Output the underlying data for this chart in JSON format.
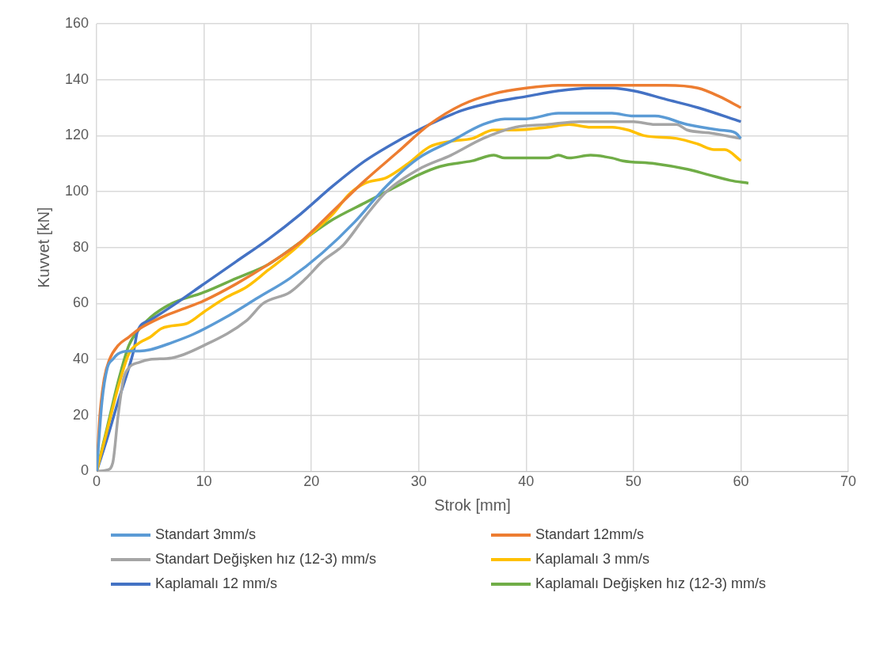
{
  "chart_data": {
    "type": "line",
    "xlabel": "Strok [mm]",
    "ylabel": "Kuvvet [kN]",
    "xlim": [
      0,
      70
    ],
    "xticks": [
      0,
      10,
      20,
      30,
      40,
      50,
      60,
      70
    ],
    "ylim": [
      0,
      160
    ],
    "yticks": [
      0,
      20,
      40,
      60,
      80,
      100,
      120,
      140,
      160
    ],
    "grid": true,
    "legend": "bottom",
    "marker": "none",
    "line_style": "solid",
    "series": [
      {
        "name": "Standart 3mm/s",
        "color": "#5b9bd5",
        "x": [
          0,
          0.5,
          1,
          1.5,
          2,
          3,
          4,
          5,
          7,
          9,
          12,
          15,
          18,
          21,
          24,
          27,
          30,
          33,
          36,
          38,
          40,
          43,
          45,
          48,
          50,
          52,
          55,
          58,
          59.5,
          60
        ],
        "values": [
          0,
          25,
          37,
          40,
          42,
          43,
          43,
          43.5,
          46,
          49,
          55,
          62,
          69,
          78,
          89,
          102,
          112,
          118,
          124,
          126,
          126,
          128,
          128,
          128,
          127,
          127,
          124,
          122,
          121,
          119
        ]
      },
      {
        "name": "Standart 12mm/s",
        "color": "#ed7d31",
        "x": [
          0,
          0.3,
          0.7,
          1.2,
          2,
          3,
          4,
          6,
          8,
          10,
          13,
          16,
          19,
          22,
          25,
          28,
          31,
          34,
          37,
          40,
          43,
          46,
          50,
          53,
          56,
          58,
          60
        ],
        "values": [
          0,
          20,
          33,
          40,
          45,
          48,
          51,
          55,
          58,
          61,
          67,
          74,
          82,
          93,
          104,
          114,
          124,
          131,
          135,
          137,
          138,
          138,
          138,
          138,
          137,
          134,
          130
        ]
      },
      {
        "name": "Standart Değişken hız (12-3) mm/s",
        "color": "#a5a5a5",
        "x": [
          0,
          1,
          1.5,
          2,
          2.5,
          3,
          4,
          5,
          7,
          10,
          14,
          15.5,
          18,
          19.5,
          21,
          23,
          25,
          27,
          30,
          33,
          36,
          39,
          42,
          45,
          48,
          50,
          52,
          54,
          55,
          57,
          60
        ],
        "values": [
          0,
          0.5,
          3,
          20,
          33,
          37,
          39,
          40,
          40.5,
          45,
          54,
          60,
          64,
          69,
          75,
          81,
          91,
          100,
          108,
          113,
          119,
          123,
          124,
          125,
          125,
          125,
          124,
          124,
          122,
          121,
          119
        ]
      },
      {
        "name": "Kaplamalı 3 mm/s",
        "color": "#ffc000",
        "x": [
          0,
          1,
          2,
          3,
          4,
          5,
          6,
          7,
          8.5,
          10,
          12,
          14,
          16,
          18,
          20,
          22,
          23.5,
          25,
          27,
          29,
          31,
          33,
          35,
          37,
          39,
          42,
          44,
          46,
          48,
          49.5,
          51,
          54,
          56,
          57.5,
          58.5,
          60
        ],
        "values": [
          0,
          15,
          30,
          42,
          46,
          48,
          51,
          52,
          53,
          57,
          62,
          66,
          72,
          78,
          85,
          92,
          99,
          103,
          105,
          110,
          116,
          118,
          119,
          122,
          122,
          123,
          124,
          123,
          123,
          122,
          120,
          119,
          117,
          115,
          115,
          111
        ]
      },
      {
        "name": "Kaplamalı 12 mm/s",
        "color": "#4472c4",
        "x": [
          0,
          1,
          2,
          3,
          3.5,
          3.8,
          5,
          7,
          10,
          13,
          16,
          19,
          22,
          25,
          28,
          31,
          34,
          37,
          40,
          43,
          46,
          48,
          50,
          53,
          56,
          60
        ],
        "values": [
          0,
          12,
          25,
          37,
          44,
          50,
          54,
          59,
          67,
          75,
          83,
          92,
          102,
          111,
          118,
          124,
          129,
          132,
          134,
          136,
          137,
          137,
          136,
          133,
          130,
          125
        ]
      },
      {
        "name": "Kaplamalı Değişken hız (12-3) mm/s",
        "color": "#70ad47",
        "x": [
          0,
          1,
          2,
          3,
          4,
          5,
          7,
          10,
          13,
          16,
          19,
          22,
          25,
          28,
          30,
          32,
          35,
          37,
          38,
          40,
          42,
          43,
          44,
          46,
          48,
          49,
          52,
          55,
          57,
          59,
          60.7
        ],
        "values": [
          0,
          16,
          32,
          45,
          51,
          55,
          60,
          64,
          69,
          74,
          82,
          90,
          96,
          102,
          106,
          109,
          111,
          113,
          112,
          112,
          112,
          113,
          112,
          113,
          112,
          111,
          110,
          108,
          106,
          104,
          103
        ]
      }
    ]
  }
}
